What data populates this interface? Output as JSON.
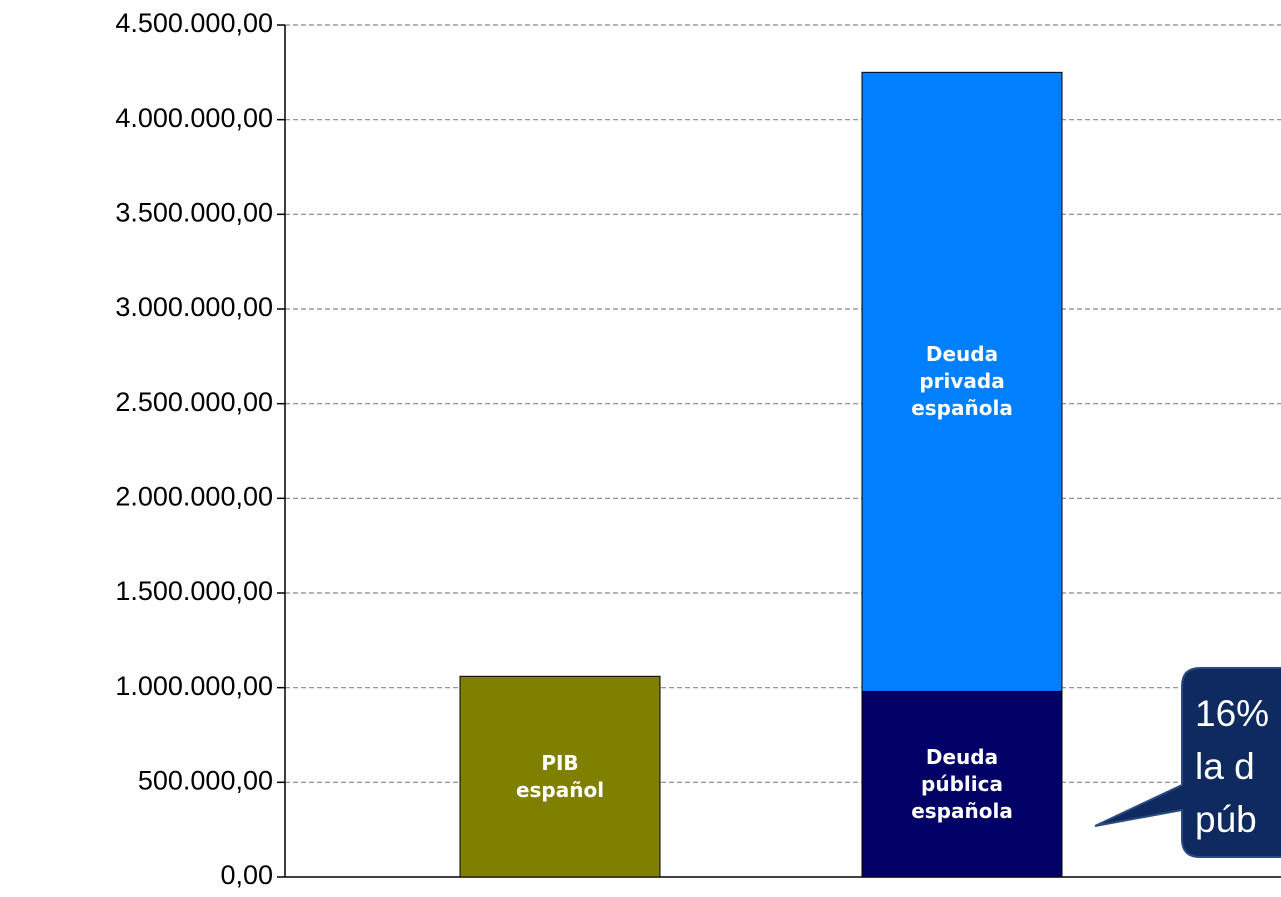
{
  "chart_data": {
    "type": "stacked_bar",
    "categories": [
      null,
      null
    ],
    "series": [
      {
        "name": "PIB español",
        "color": "#808000",
        "values": [
          1060000,
          null
        ]
      },
      {
        "name": "Deuda pública española",
        "color": "#000066",
        "values": [
          null,
          980000
        ]
      },
      {
        "name": "Deuda privada española",
        "color": "#0080ff",
        "values": [
          null,
          3270000
        ]
      }
    ],
    "ylim": [
      0,
      4500000
    ],
    "yticks": [
      {
        "value": 0,
        "label": "0,00"
      },
      {
        "value": 500000,
        "label": "500.000,00"
      },
      {
        "value": 1000000,
        "label": "1.000.000,00"
      },
      {
        "value": 1500000,
        "label": "1.500.000,00"
      },
      {
        "value": 2000000,
        "label": "2.000.000,00"
      },
      {
        "value": 2500000,
        "label": "2.500.000,00"
      },
      {
        "value": 3000000,
        "label": "3.000.000,00"
      },
      {
        "value": 3500000,
        "label": "3.500.000,00"
      },
      {
        "value": 4000000,
        "label": "4.000.000,00"
      },
      {
        "value": 4500000,
        "label": "4.500.000,00"
      }
    ],
    "grid": true,
    "annotation": [
      "16%",
      "la d",
      "púb"
    ]
  }
}
